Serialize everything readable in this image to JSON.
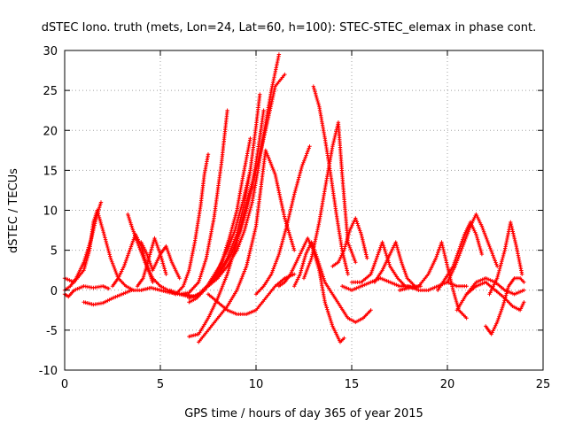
{
  "chart_data": {
    "type": "scatter",
    "title": "dSTEC Iono. truth (mets, Lon=24, Lat=60, h=100): STEC-STEC_elemax in phase cont.",
    "xlabel": "GPS time / hours of day 365 of year 2015",
    "ylabel": "dSTEC  / TECUs",
    "xlim": [
      0,
      25
    ],
    "ylim": [
      -10,
      30
    ],
    "xticks": [
      0,
      5,
      10,
      15,
      20,
      25
    ],
    "yticks": [
      -10,
      -5,
      0,
      5,
      10,
      15,
      20,
      25,
      30
    ],
    "grid": true,
    "marker": "+",
    "color": "#ff0000",
    "series": [
      {
        "x": [
          0.0,
          0.3,
          0.6,
          1.0,
          1.4,
          1.7,
          1.9
        ],
        "y": [
          0.0,
          0.5,
          1.5,
          3.5,
          6.5,
          9.5,
          11.0
        ]
      },
      {
        "x": [
          0.0,
          0.5,
          1.0,
          1.3,
          1.5,
          1.7,
          2.0,
          2.4,
          2.8,
          3.2,
          3.6
        ],
        "y": [
          1.5,
          1.0,
          2.5,
          5.0,
          8.5,
          10.0,
          7.5,
          4.0,
          1.5,
          0.5,
          0.0
        ]
      },
      {
        "x": [
          0.0,
          0.2,
          0.5,
          1.0,
          1.5,
          2.0,
          2.3
        ],
        "y": [
          -0.5,
          -0.8,
          0.0,
          0.5,
          0.3,
          0.5,
          0.2
        ]
      },
      {
        "x": [
          1.0,
          1.5,
          2.0,
          2.5,
          3.0,
          3.5,
          4.0,
          4.5,
          5.0,
          5.5,
          6.0,
          6.5
        ],
        "y": [
          -1.5,
          -1.8,
          -1.6,
          -1.0,
          -0.5,
          0.0,
          0.0,
          0.3,
          0.0,
          -0.3,
          -0.5,
          -0.8
        ]
      },
      {
        "x": [
          2.5,
          2.8,
          3.1,
          3.4,
          3.7,
          4.0,
          4.3,
          4.6
        ],
        "y": [
          0.5,
          1.5,
          3.0,
          5.0,
          7.0,
          5.5,
          3.0,
          1.0
        ]
      },
      {
        "x": [
          3.3,
          3.5,
          3.8,
          4.2,
          4.6,
          5.0
        ],
        "y": [
          9.5,
          8.0,
          6.0,
          3.5,
          1.5,
          0.5
        ]
      },
      {
        "x": [
          3.8,
          4.1,
          4.4,
          4.7,
          5.0,
          5.3
        ],
        "y": [
          0.5,
          1.5,
          4.0,
          6.5,
          4.5,
          2.0
        ]
      },
      {
        "x": [
          4.0,
          4.3,
          4.6,
          5.0,
          5.3,
          5.6,
          6.0
        ],
        "y": [
          6.0,
          4.5,
          2.5,
          4.5,
          5.5,
          3.5,
          1.5
        ]
      },
      {
        "x": [
          5.0,
          5.4,
          5.8,
          6.2,
          6.5,
          6.8,
          7.1,
          7.3,
          7.5
        ],
        "y": [
          0.5,
          0.0,
          -0.5,
          0.5,
          2.5,
          6.0,
          10.5,
          14.5,
          17.0
        ]
      },
      {
        "x": [
          5.5,
          6.0,
          6.5,
          7.0,
          7.4,
          7.8,
          8.2,
          8.5
        ],
        "y": [
          0.0,
          -0.5,
          -0.3,
          1.0,
          4.0,
          9.0,
          16.0,
          22.5
        ]
      },
      {
        "x": [
          6.2,
          6.8,
          7.3,
          7.8,
          8.2,
          8.6,
          9.0,
          9.3,
          9.7
        ],
        "y": [
          -0.5,
          -0.8,
          0.0,
          1.5,
          3.5,
          6.5,
          10.0,
          14.0,
          19.0
        ]
      },
      {
        "x": [
          6.5,
          7.0,
          7.5,
          8.0,
          8.5,
          9.0,
          9.4,
          9.7
        ],
        "y": [
          -1.0,
          -0.5,
          0.5,
          2.0,
          4.0,
          7.0,
          11.0,
          15.0
        ]
      },
      {
        "x": [
          6.5,
          6.9,
          7.3,
          7.7,
          8.1,
          8.5,
          8.9,
          9.3,
          9.7,
          10.0,
          10.2
        ],
        "y": [
          -1.5,
          -1.0,
          0.0,
          1.5,
          3.0,
          5.0,
          7.5,
          11.0,
          15.0,
          20.5,
          24.5
        ]
      },
      {
        "x": [
          7.2,
          7.7,
          8.2,
          8.7,
          9.2,
          9.5,
          9.8,
          10.1,
          10.4
        ],
        "y": [
          0.0,
          1.0,
          2.5,
          4.5,
          7.5,
          10.0,
          13.0,
          17.5,
          22.5
        ]
      },
      {
        "x": [
          7.5,
          8.0,
          8.5,
          9.0,
          9.4,
          9.8,
          10.1,
          10.4,
          10.8,
          11.2
        ],
        "y": [
          0.5,
          1.5,
          3.0,
          5.0,
          7.5,
          11.0,
          15.0,
          19.5,
          25.0,
          29.5
        ]
      },
      {
        "x": [
          6.5,
          7.0,
          7.5,
          8.0,
          8.5,
          9.0,
          9.5,
          10.0,
          10.5,
          11.0,
          11.5
        ],
        "y": [
          -5.8,
          -5.5,
          -3.5,
          -1.0,
          2.0,
          6.0,
          11.0,
          15.0,
          20.0,
          25.5,
          27.0
        ]
      },
      {
        "x": [
          7.0,
          7.5,
          8.0,
          8.5,
          9.0,
          9.5,
          10.0,
          10.5,
          11.0,
          11.5,
          12.0
        ],
        "y": [
          -6.5,
          -5.0,
          -3.5,
          -2.0,
          0.0,
          3.0,
          8.0,
          17.5,
          14.5,
          9.0,
          5.0
        ]
      },
      {
        "x": [
          7.5,
          8.0,
          8.5,
          9.0,
          9.5,
          10.0,
          10.5,
          11.0,
          11.5,
          12.0
        ],
        "y": [
          -0.5,
          -1.5,
          -2.5,
          -3.0,
          -3.0,
          -2.5,
          -1.0,
          0.5,
          1.5,
          2.0
        ]
      },
      {
        "x": [
          10.0,
          10.4,
          10.8,
          11.2,
          11.6,
          12.0,
          12.4,
          12.8
        ],
        "y": [
          -0.5,
          0.5,
          2.0,
          4.5,
          8.0,
          12.0,
          15.5,
          18.0
        ]
      },
      {
        "x": [
          11.2,
          11.5,
          11.8,
          12.1,
          12.4,
          12.7,
          13.0,
          13.3,
          13.6,
          14.0,
          14.4,
          14.6
        ],
        "y": [
          0.5,
          1.0,
          2.0,
          3.5,
          5.0,
          6.5,
          5.0,
          2.5,
          -1.5,
          -4.5,
          -6.5,
          -6.0
        ]
      },
      {
        "x": [
          12.0,
          12.3,
          12.6,
          12.9,
          13.2,
          13.6,
          14.0,
          14.4,
          14.8,
          15.2,
          15.6,
          16.0
        ],
        "y": [
          0.5,
          2.0,
          4.5,
          6.0,
          4.0,
          1.0,
          -0.5,
          -2.0,
          -3.5,
          -4.0,
          -3.5,
          -2.5
        ]
      },
      {
        "x": [
          13.0,
          13.3,
          13.6,
          13.9,
          14.2,
          14.5,
          14.8
        ],
        "y": [
          25.5,
          23.0,
          19.0,
          14.5,
          9.5,
          5.0,
          2.0
        ]
      },
      {
        "x": [
          12.5,
          12.9,
          13.3,
          13.7,
          14.0,
          14.3,
          14.5,
          14.8,
          15.2
        ],
        "y": [
          1.5,
          4.0,
          8.5,
          14.0,
          18.0,
          21.0,
          14.5,
          6.0,
          3.5
        ]
      },
      {
        "x": [
          14.0,
          14.3,
          14.6,
          14.9,
          15.2,
          15.5,
          15.8
        ],
        "y": [
          3.0,
          3.5,
          5.0,
          7.5,
          9.0,
          7.0,
          4.0
        ]
      },
      {
        "x": [
          14.5,
          15.0,
          15.5,
          16.0,
          16.5,
          17.0,
          17.5,
          18.0,
          18.5,
          19.0,
          19.5,
          20.0,
          20.5,
          21.0
        ],
        "y": [
          0.5,
          0.0,
          0.5,
          1.0,
          1.5,
          1.0,
          0.5,
          0.5,
          0.0,
          0.0,
          0.5,
          1.0,
          0.5,
          0.5
        ]
      },
      {
        "x": [
          15.0,
          15.5,
          16.0,
          16.3,
          16.6,
          17.0,
          17.4,
          17.8,
          18.2,
          18.6
        ],
        "y": [
          1.0,
          1.0,
          2.0,
          4.0,
          6.0,
          3.0,
          1.5,
          0.5,
          0.3,
          0.5
        ]
      },
      {
        "x": [
          16.2,
          16.6,
          17.0,
          17.3,
          17.6,
          17.9,
          18.3
        ],
        "y": [
          1.0,
          2.5,
          4.5,
          6.0,
          3.5,
          1.5,
          0.5
        ]
      },
      {
        "x": [
          17.5,
          18.0,
          18.5,
          19.0,
          19.4,
          19.7,
          20.0,
          20.3,
          20.6,
          21.0
        ],
        "y": [
          0.0,
          0.3,
          0.5,
          2.0,
          4.0,
          6.0,
          3.0,
          0.0,
          -2.5,
          -3.5
        ]
      },
      {
        "x": [
          19.5,
          19.9,
          20.3,
          20.6,
          20.9,
          21.2,
          21.5,
          21.8
        ],
        "y": [
          0.0,
          1.5,
          3.0,
          5.0,
          7.0,
          8.5,
          7.0,
          4.5
        ]
      },
      {
        "x": [
          20.0,
          20.4,
          20.8,
          21.2,
          21.5,
          21.8,
          22.2,
          22.6
        ],
        "y": [
          1.0,
          3.0,
          5.5,
          8.0,
          9.5,
          8.0,
          5.5,
          3.0
        ]
      },
      {
        "x": [
          20.5,
          21.0,
          21.5,
          22.0,
          22.5,
          23.0,
          23.5,
          24.0
        ],
        "y": [
          -2.5,
          -0.5,
          1.0,
          1.5,
          1.0,
          0.0,
          -0.5,
          0.0
        ]
      },
      {
        "x": [
          21.0,
          21.5,
          22.0,
          22.5,
          23.0,
          23.4,
          23.8,
          24.0
        ],
        "y": [
          -0.5,
          0.5,
          1.0,
          0.0,
          -1.0,
          -2.0,
          -2.5,
          -1.5
        ]
      },
      {
        "x": [
          22.0,
          22.3,
          22.6,
          22.9,
          23.2,
          23.5,
          23.8,
          24.0
        ],
        "y": [
          -4.5,
          -5.5,
          -4.0,
          -2.0,
          0.5,
          1.5,
          1.5,
          1.0
        ]
      },
      {
        "x": [
          22.2,
          22.6,
          23.0,
          23.3,
          23.6,
          23.9
        ],
        "y": [
          -0.5,
          1.5,
          5.0,
          8.5,
          5.5,
          2.0
        ]
      }
    ]
  }
}
